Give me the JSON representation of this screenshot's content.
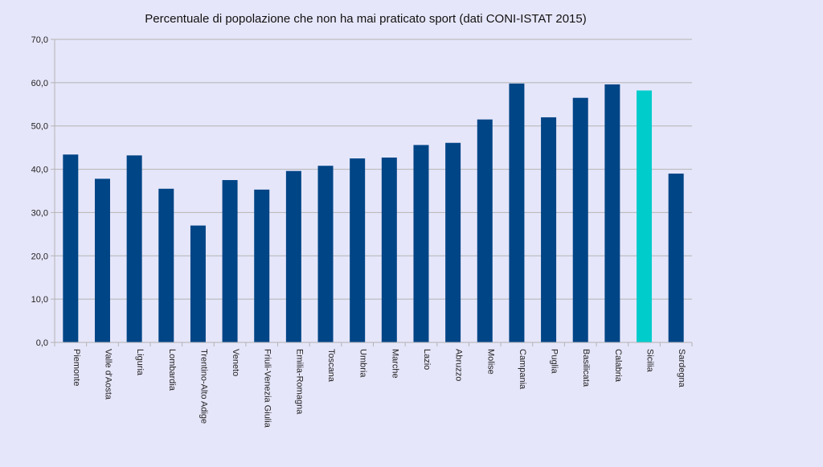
{
  "chart_data": {
    "type": "bar",
    "title": "Percentuale di popolazione che non ha mai praticato sport (dati CONI-ISTAT 2015)",
    "xlabel": "",
    "ylabel": "",
    "ylim": [
      0,
      70
    ],
    "yticks": [
      "0,0",
      "10,0",
      "20,0",
      "30,0",
      "40,0",
      "50,0",
      "60,0",
      "70,0"
    ],
    "grid": true,
    "categories": [
      "Piemonte",
      "Valle d'Aosta",
      "Liguria",
      "Lombardia",
      "Trentino-Alto Adige",
      "Veneto",
      "Friuli-Venezia Giulia",
      "Emilia-Romagna",
      "Toscana",
      "Umbria",
      "Marche",
      "Lazio",
      "Abruzzo",
      "Molise",
      "Campania",
      "Puglia",
      "Basilicata",
      "Calabria",
      "Sicilia",
      "Sardegna"
    ],
    "values": [
      43.4,
      37.8,
      43.2,
      35.5,
      27.0,
      37.5,
      35.3,
      39.6,
      40.8,
      42.5,
      42.7,
      45.6,
      46.1,
      51.5,
      59.8,
      52.0,
      56.5,
      59.6,
      58.2,
      39.0
    ],
    "colors": {
      "default": "#004586",
      "highlight": "#00cccc",
      "highlight_category": "Sicilia",
      "grid": "#b3b3b3",
      "axis": "#b3b3b3"
    }
  }
}
